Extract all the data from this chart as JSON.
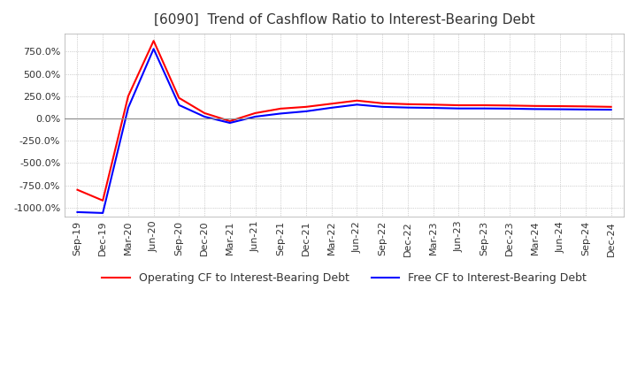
{
  "title": "[6090]  Trend of Cashflow Ratio to Interest-Bearing Debt",
  "title_color": "#333333",
  "background_color": "#ffffff",
  "plot_background_color": "#ffffff",
  "grid_color": "#aaaaaa",
  "x_labels": [
    "Sep-19",
    "Dec-19",
    "Mar-20",
    "Jun-20",
    "Sep-20",
    "Dec-20",
    "Mar-21",
    "Jun-21",
    "Sep-21",
    "Dec-21",
    "Mar-22",
    "Jun-22",
    "Sep-22",
    "Dec-22",
    "Mar-23",
    "Jun-23",
    "Sep-23",
    "Dec-23",
    "Mar-24",
    "Jun-24",
    "Sep-24",
    "Dec-24"
  ],
  "operating_cf": [
    -800,
    -920,
    250,
    870,
    230,
    60,
    -30,
    60,
    110,
    130,
    165,
    200,
    170,
    160,
    155,
    148,
    148,
    145,
    140,
    138,
    135,
    130
  ],
  "free_cf": [
    -1050,
    -1060,
    120,
    780,
    150,
    20,
    -50,
    20,
    55,
    80,
    120,
    155,
    130,
    122,
    118,
    112,
    112,
    110,
    105,
    103,
    100,
    98
  ],
  "ylim": [
    -1100,
    950
  ],
  "yticks": [
    750,
    500,
    250,
    0,
    -250,
    -500,
    -750,
    -1000
  ],
  "operating_color": "#ff0000",
  "free_color": "#0000ff",
  "legend_labels": [
    "Operating CF to Interest-Bearing Debt",
    "Free CF to Interest-Bearing Debt"
  ],
  "line_width": 1.5,
  "zero_line_color": "#888888",
  "title_fontsize": 11,
  "tick_fontsize": 8
}
